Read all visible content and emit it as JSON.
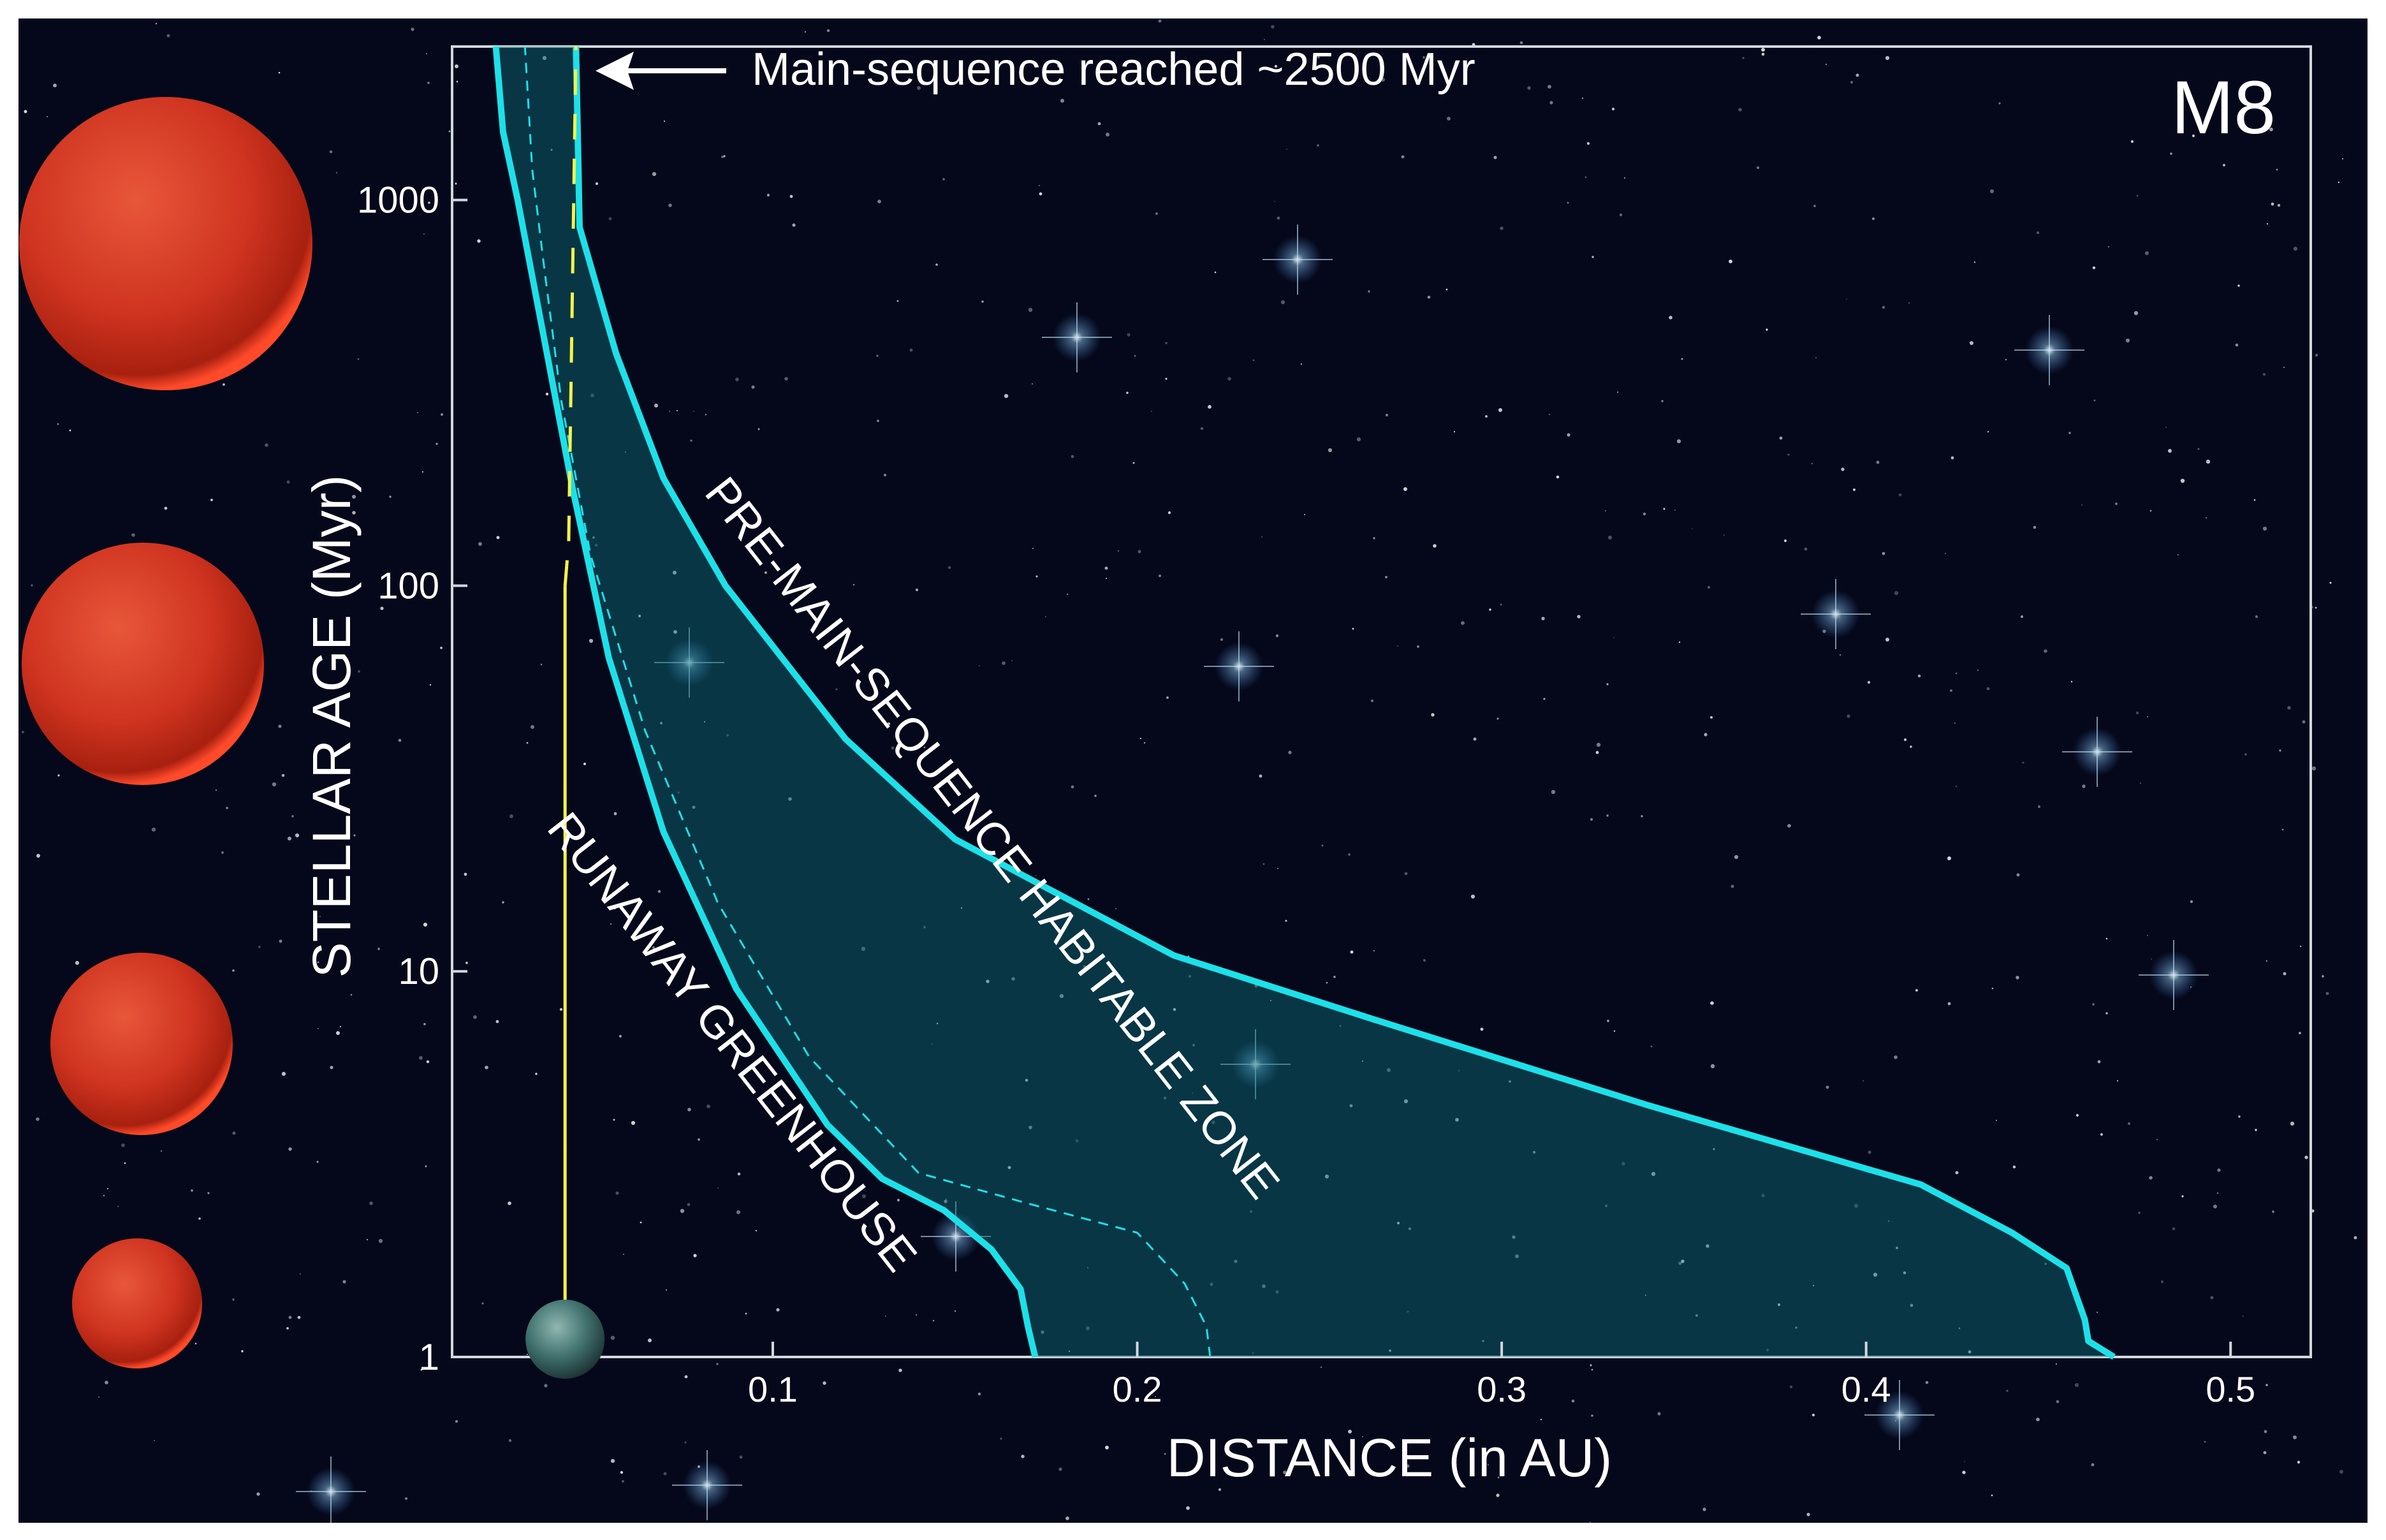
{
  "chart_data": {
    "type": "area",
    "title": "M8",
    "xlabel": "DISTANCE (in AU)",
    "ylabel": "STELLAR AGE (Myr)",
    "x_scale": "linear",
    "y_scale": "log",
    "xlim": [
      0.012,
      0.522
    ],
    "ylim": [
      1,
      2500
    ],
    "x_ticks": [
      0.1,
      0.2,
      0.3,
      0.4,
      0.5
    ],
    "x_tick_labels": [
      "0.1",
      "0.2",
      "0.3",
      "0.4",
      "0.5"
    ],
    "y_ticks": [
      1,
      10,
      100,
      1000
    ],
    "y_tick_labels": [
      "1",
      "10",
      "100",
      "1000"
    ],
    "grid": false,
    "series": [
      {
        "role": "habitable-zone-inner-edge",
        "points": [
          [
            0.172,
            1
          ],
          [
            0.17,
            1.2
          ],
          [
            0.168,
            1.5
          ],
          [
            0.16,
            1.9
          ],
          [
            0.147,
            2.4
          ],
          [
            0.13,
            2.9
          ],
          [
            0.115,
            4
          ],
          [
            0.09,
            9
          ],
          [
            0.07,
            23
          ],
          [
            0.055,
            65
          ],
          [
            0.045,
            180
          ],
          [
            0.037,
            450
          ],
          [
            0.03,
            1000
          ],
          [
            0.026,
            1500
          ],
          [
            0.024,
            2500
          ]
        ]
      },
      {
        "role": "habitable-zone-outer-edge",
        "points": [
          [
            0.468,
            1
          ],
          [
            0.461,
            1.1
          ],
          [
            0.46,
            1.25
          ],
          [
            0.455,
            1.7
          ],
          [
            0.44,
            2.1
          ],
          [
            0.415,
            2.8
          ],
          [
            0.34,
            4.5
          ],
          [
            0.265,
            7.5
          ],
          [
            0.21,
            11
          ],
          [
            0.15,
            22
          ],
          [
            0.12,
            40
          ],
          [
            0.087,
            100
          ],
          [
            0.07,
            190
          ],
          [
            0.057,
            400
          ],
          [
            0.047,
            850
          ],
          [
            0.046,
            2500
          ]
        ]
      },
      {
        "role": "habitable-zone-midline-dashed",
        "points": [
          [
            0.22,
            1
          ],
          [
            0.219,
            1.2
          ],
          [
            0.213,
            1.55
          ],
          [
            0.2,
            2.1
          ],
          [
            0.17,
            2.5
          ],
          [
            0.14,
            3
          ],
          [
            0.11,
            6
          ],
          [
            0.085,
            15
          ],
          [
            0.065,
            42
          ],
          [
            0.05,
            120
          ],
          [
            0.042,
            300
          ],
          [
            0.037,
            700
          ],
          [
            0.034,
            1200
          ],
          [
            0.032,
            2500
          ]
        ]
      },
      {
        "role": "planet-orbit-yellow",
        "points": [
          [
            0.043,
            1.2
          ],
          [
            0.043,
            100
          ],
          [
            0.044,
            130
          ],
          [
            0.046,
            2500
          ]
        ]
      }
    ],
    "annotations": [
      {
        "text": "Main-sequence reached ~2500 Myr",
        "x": 0.05,
        "y": 2500
      },
      {
        "text": "PRE-MAIN-SEQUENCE HABITABLE ZONE",
        "x": 0.15,
        "y": 20
      },
      {
        "text": "RUNAWAY GREENHOUSE",
        "x": 0.09,
        "y": 5
      }
    ],
    "colors": {
      "zone_line": "#1de0e8",
      "zone_fill": "#0e6e7a",
      "planet_line": "#f4f24a",
      "background": "#05081a",
      "star": "#d83a22"
    }
  }
}
